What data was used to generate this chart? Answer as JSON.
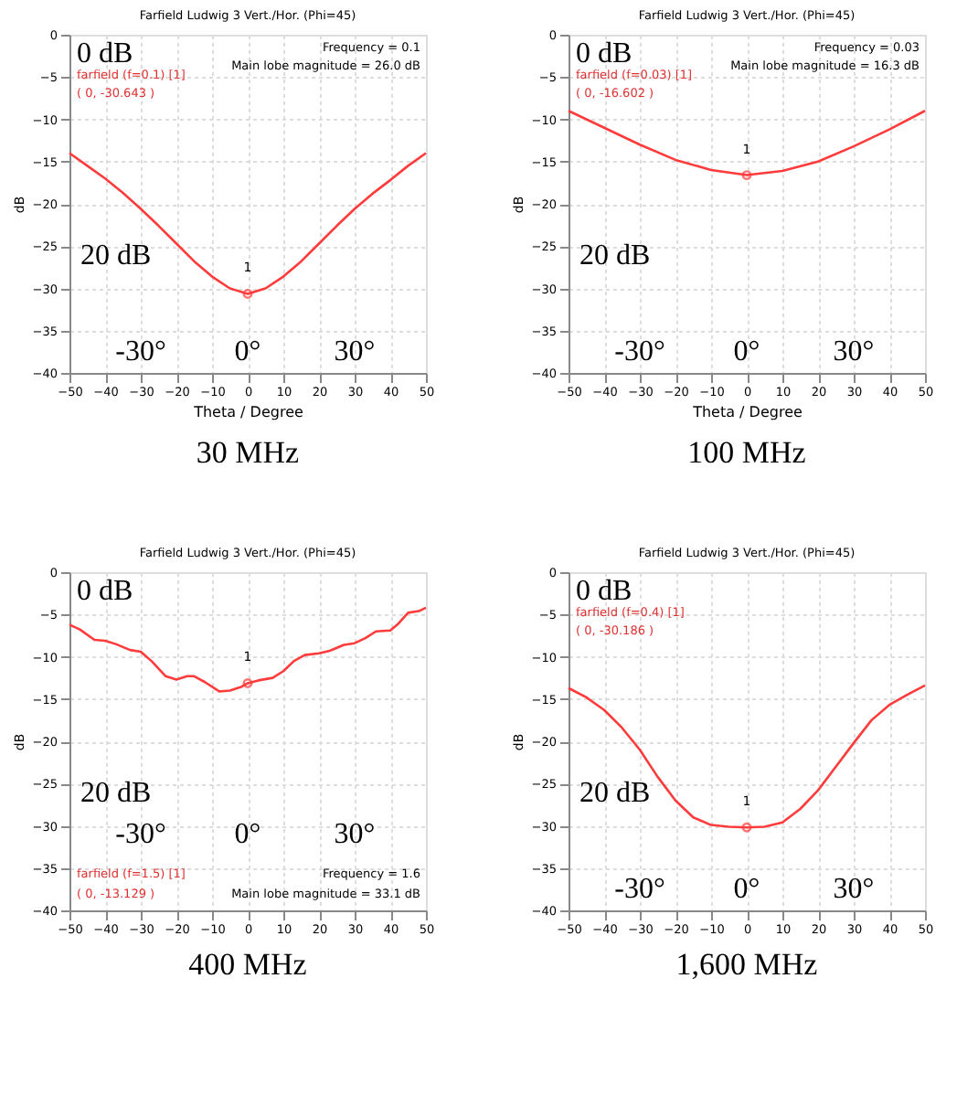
{
  "chart_data": [
    {
      "type": "line",
      "title": "Farfield  Ludwig 3 Vert./Hor. (Phi=45)",
      "xlabel": "Theta / Degree",
      "ylabel": "dB",
      "xlim": [
        -50,
        50
      ],
      "ylim": [
        -40,
        0
      ],
      "xticks": [
        -50,
        -40,
        -30,
        -20,
        -10,
        0,
        10,
        20,
        30,
        40,
        50
      ],
      "yticks": [
        -40,
        -35,
        -30,
        -25,
        -20,
        -15,
        -10,
        -5,
        0
      ],
      "grid": true,
      "line_style": "solid",
      "series": [
        {
          "color": "#ff3b3b",
          "x": [
            -50,
            -45,
            -40,
            -35,
            -30,
            -25,
            -20,
            -15,
            -10,
            -5,
            0,
            5,
            10,
            15,
            20,
            25,
            30,
            35,
            40,
            45,
            50
          ],
          "values": [
            -14,
            -15.5,
            -17,
            -18.7,
            -20.6,
            -22.6,
            -24.7,
            -26.8,
            -28.6,
            -30,
            -30.643,
            -30,
            -28.6,
            -26.8,
            -24.7,
            -22.6,
            -20.6,
            -18.8,
            -17.2,
            -15.5,
            -14
          ]
        },
        {
          "type": "scatter",
          "color": "#ff3b3b",
          "x": [
            0
          ],
          "values": [
            -30.643
          ]
        }
      ],
      "annotations": [
        "30 MHz",
        "0 dB",
        "20 dB",
        "-30°",
        "0°",
        "30°",
        "farfield (f=0.1) [1]",
        "( 0, -30.643 )",
        "Frequency = 0.1",
        "Main lobe magnitude =  26.0 dB",
        "1"
      ]
    },
    {
      "type": "line",
      "title": "Farfield  Ludwig 3 Vert./Hor. (Phi=45)",
      "xlabel": "Theta / Degree",
      "ylabel": "dB",
      "xlim": [
        -50,
        50
      ],
      "ylim": [
        -40,
        0
      ],
      "xticks": [
        -50,
        -40,
        -30,
        -20,
        -10,
        0,
        10,
        20,
        30,
        40,
        50
      ],
      "yticks": [
        -40,
        -35,
        -30,
        -25,
        -20,
        -15,
        -10,
        -5,
        0
      ],
      "grid": true,
      "line_style": "solid",
      "series": [
        {
          "color": "#ff3b3b",
          "x": [
            -50,
            -40,
            -30,
            -20,
            -10,
            0,
            10,
            20,
            30,
            40,
            50
          ],
          "values": [
            -9,
            -11,
            -13,
            -14.8,
            -16,
            -16.602,
            -16.1,
            -15,
            -13.2,
            -11.2,
            -9
          ]
        },
        {
          "type": "scatter",
          "color": "#ff3b3b",
          "x": [
            0
          ],
          "values": [
            -16.602
          ]
        }
      ],
      "annotations": [
        "100 MHz",
        "0 dB",
        "20 dB",
        "-30°",
        "0°",
        "30°",
        "farfield (f=0.03) [1]",
        "( 0, -16.602 )",
        "Frequency = 0.03",
        "Main lobe magnitude =  16.3 dB",
        "1"
      ]
    },
    {
      "type": "line",
      "title": "Farfield  Ludwig 3 Vert./Hor. (Phi=45)",
      "ylabel": "dB",
      "xlim": [
        -50,
        50
      ],
      "ylim": [
        -40,
        0
      ],
      "xticks": [
        -50,
        -40,
        -30,
        -20,
        -10,
        0,
        10,
        20,
        30,
        40,
        50
      ],
      "yticks": [
        -40,
        -35,
        -30,
        -25,
        -20,
        -15,
        -10,
        -5,
        0
      ],
      "grid": true,
      "line_style": "solid",
      "series": [
        {
          "color": "#ff3b3b",
          "x": [
            -50,
            -47,
            -43,
            -40,
            -37,
            -33,
            -30,
            -27,
            -23,
            -20,
            -17,
            -15,
            -12,
            -8,
            -5,
            -2,
            0,
            3,
            7,
            10,
            13,
            16,
            20,
            23,
            27,
            30,
            33,
            36,
            40,
            42,
            45,
            48,
            50
          ],
          "values": [
            -6.2,
            -6.8,
            -8,
            -8.1,
            -8.5,
            -9.2,
            -9.4,
            -10.5,
            -12.3,
            -12.7,
            -12.3,
            -12.3,
            -13,
            -14.1,
            -14,
            -13.6,
            -13.129,
            -12.8,
            -12.5,
            -11.7,
            -10.5,
            -9.8,
            -9.6,
            -9.3,
            -8.6,
            -8.4,
            -7.8,
            -7,
            -6.9,
            -6.2,
            -4.8,
            -4.6,
            -4.2
          ]
        },
        {
          "type": "scatter",
          "color": "#ff3b3b",
          "x": [
            0
          ],
          "values": [
            -13.129
          ]
        }
      ],
      "annotations": [
        "400 MHz",
        "0 dB",
        "20 dB",
        "-30°",
        "0°",
        "30°",
        "farfield (f=1.5) [1]",
        "( 0, -13.129 )",
        "Frequency = 1.6",
        "Main lobe magnitude =  33.1 dB",
        "1"
      ]
    },
    {
      "type": "line",
      "title": "Farfield  Ludwig 3 Vert./Hor. (Phi=45)",
      "ylabel": "dB",
      "xlim": [
        -50,
        50
      ],
      "ylim": [
        -40,
        0
      ],
      "xticks": [
        -50,
        -40,
        -30,
        -20,
        -10,
        0,
        10,
        20,
        30,
        40,
        50
      ],
      "yticks": [
        -40,
        -35,
        -30,
        -25,
        -20,
        -15,
        -10,
        -5,
        0
      ],
      "grid": true,
      "line_style": "solid",
      "series": [
        {
          "color": "#ff3b3b",
          "x": [
            -50,
            -45,
            -40,
            -35,
            -30,
            -25,
            -20,
            -15,
            -10,
            -5,
            0,
            5,
            10,
            15,
            20,
            25,
            30,
            35,
            40,
            45,
            50
          ],
          "values": [
            -13.7,
            -14.8,
            -16.3,
            -18.4,
            -21,
            -24.2,
            -27,
            -29,
            -29.9,
            -30.1,
            -30.186,
            -30.1,
            -29.6,
            -28,
            -25.8,
            -23,
            -20.2,
            -17.5,
            -15.7,
            -14.5,
            -13.4
          ]
        },
        {
          "type": "scatter",
          "color": "#ff3b3b",
          "x": [
            0
          ],
          "values": [
            -30.186
          ]
        }
      ],
      "annotations": [
        "1,600 MHz",
        "0 dB",
        "20 dB",
        "-30°",
        "0°",
        "30°",
        "farfield (f=0.4) [1]",
        "( 0, -30.186 )",
        "1"
      ]
    }
  ]
}
